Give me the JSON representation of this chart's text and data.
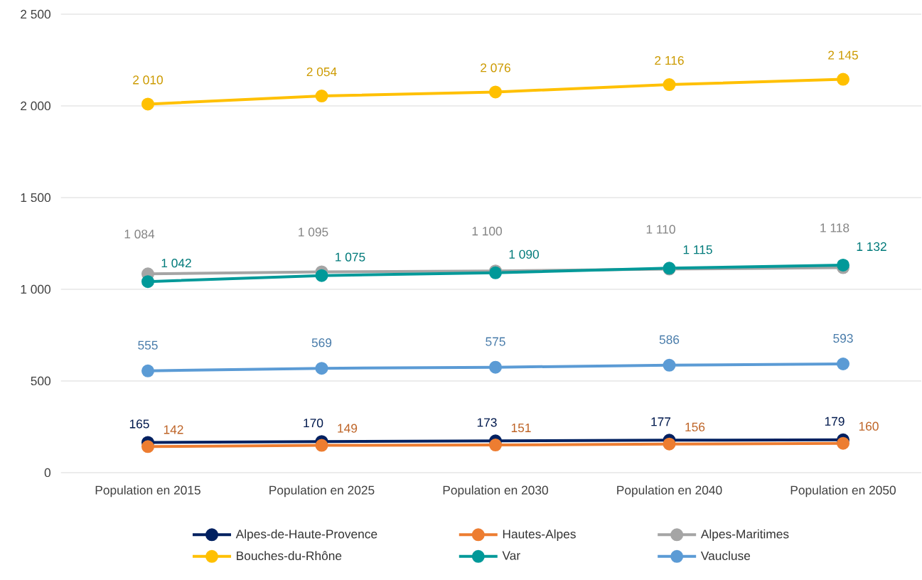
{
  "chart_data": {
    "type": "line",
    "categories": [
      "Population en 2015",
      "Population en 2025",
      "Population en 2030",
      "Population en 2040",
      "Population en 2050"
    ],
    "series": [
      {
        "name": "Alpes-de-Haute-Provence",
        "color": "#002060",
        "values": [
          165,
          170,
          173,
          177,
          179
        ],
        "value_labels": [
          "165",
          "170",
          "173",
          "177",
          "179"
        ]
      },
      {
        "name": "Hautes-Alpes",
        "color": "#ED7D31",
        "values": [
          142,
          149,
          151,
          156,
          160
        ],
        "value_labels": [
          "142",
          "149",
          "151",
          "156",
          "160"
        ]
      },
      {
        "name": "Alpes-Maritimes",
        "color": "#A5A5A5",
        "values": [
          1084,
          1095,
          1100,
          1110,
          1118
        ],
        "value_labels": [
          "1 084",
          "1 095",
          "1 100",
          "1 110",
          "1 118"
        ]
      },
      {
        "name": "Bouches-du-Rhône",
        "color": "#FFC000",
        "values": [
          2010,
          2054,
          2076,
          2116,
          2145
        ],
        "value_labels": [
          "2 010",
          "2 054",
          "2 076",
          "2 116",
          "2 145"
        ]
      },
      {
        "name": "Var",
        "color": "#009999",
        "values": [
          1042,
          1075,
          1090,
          1115,
          1132
        ],
        "value_labels": [
          "1 042",
          "1 075",
          "1 090",
          "1 115",
          "1 132"
        ]
      },
      {
        "name": "Vaucluse",
        "color": "#5B9BD5",
        "values": [
          555,
          569,
          575,
          586,
          593
        ],
        "value_labels": [
          "555",
          "569",
          "575",
          "586",
          "593"
        ]
      }
    ],
    "ylim": [
      0,
      2500
    ],
    "yticks": [
      0,
      500,
      {
        "value": 1000,
        "label": "1 000"
      },
      {
        "value": 1500,
        "label": "1 500"
      },
      {
        "value": 2000,
        "label": "2 000"
      },
      {
        "value": 2500,
        "label": "2 500"
      }
    ],
    "grid": "y",
    "legend": "bottom",
    "marker": "circle",
    "line_style": "solid"
  }
}
